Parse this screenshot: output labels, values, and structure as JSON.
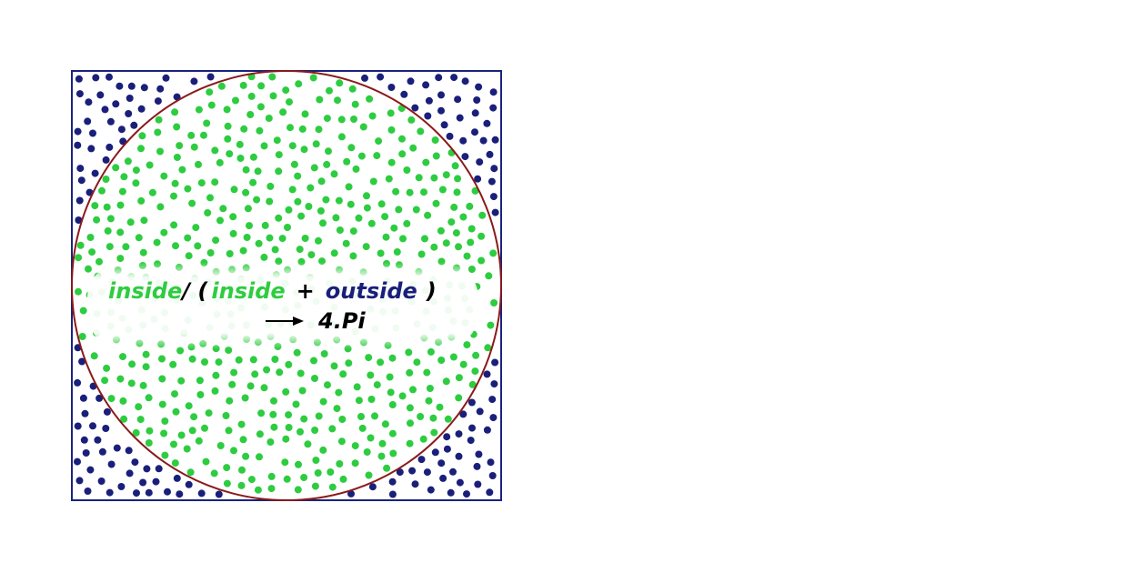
{
  "diagram": {
    "colors": {
      "background": "#ffffff",
      "square_stroke": "#1a237e",
      "circle_stroke": "#8b1a1a",
      "inside_points": "#2ecc40",
      "outside_points": "#1a1f7a",
      "formula_dark": "#000000",
      "band_fill": "#ffffff"
    },
    "point_counts": {
      "inside": 560,
      "outside": 150
    },
    "formula": {
      "inside_1": "inside",
      "slash_paren": "/ (",
      "inside_2": "inside",
      "plus": "+",
      "outside": "outside",
      "close_paren": ")",
      "result": "4.Pi"
    }
  }
}
